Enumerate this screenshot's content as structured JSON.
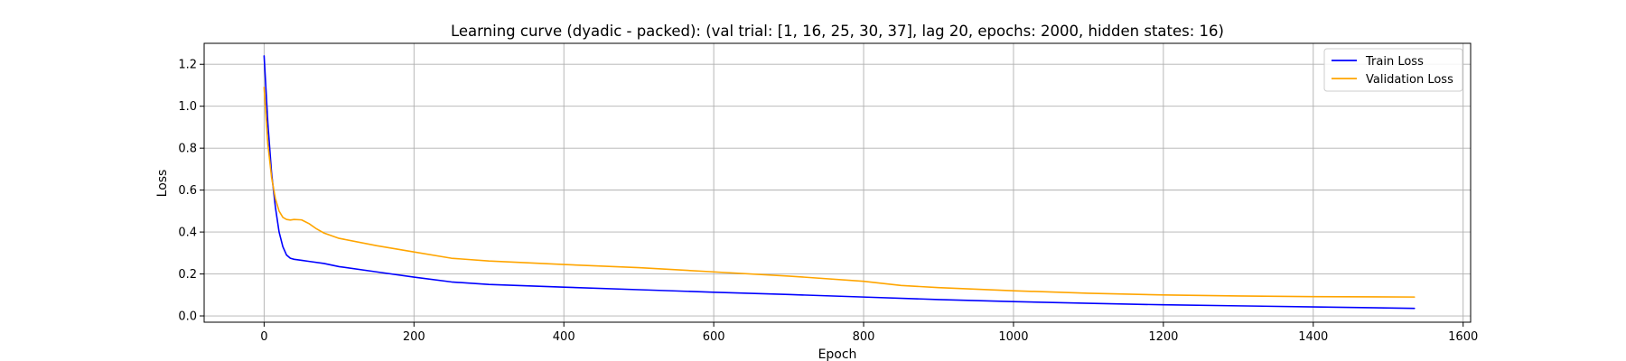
{
  "chart_data": {
    "type": "line",
    "title": "Learning curve (dyadic - packed): (val trial: [1, 16, 25, 30, 37], lag 20, epochs: 2000, hidden states: 16)",
    "xlabel": "Epoch",
    "ylabel": "Loss",
    "xlim": [
      -80,
      1610
    ],
    "ylim": [
      -0.03,
      1.3
    ],
    "xticks": [
      0,
      200,
      400,
      600,
      800,
      1000,
      1200,
      1400,
      1600
    ],
    "yticks": [
      0.0,
      0.2,
      0.4,
      0.6,
      0.8,
      1.0,
      1.2
    ],
    "grid": true,
    "legend_position": "top-right",
    "series": [
      {
        "name": "Train Loss",
        "color": "#0000ff",
        "x": [
          0,
          5,
          10,
          15,
          20,
          25,
          30,
          35,
          40,
          50,
          60,
          80,
          100,
          150,
          200,
          250,
          300,
          400,
          500,
          600,
          700,
          800,
          900,
          1000,
          1100,
          1200,
          1300,
          1400,
          1535
        ],
        "y": [
          1.24,
          0.92,
          0.68,
          0.52,
          0.4,
          0.33,
          0.29,
          0.275,
          0.27,
          0.265,
          0.26,
          0.25,
          0.235,
          0.21,
          0.185,
          0.162,
          0.15,
          0.137,
          0.125,
          0.113,
          0.102,
          0.09,
          0.078,
          0.068,
          0.06,
          0.053,
          0.048,
          0.043,
          0.036
        ]
      },
      {
        "name": "Validation Loss",
        "color": "#ffa500",
        "x": [
          0,
          5,
          10,
          15,
          20,
          25,
          30,
          35,
          40,
          50,
          60,
          70,
          80,
          100,
          150,
          200,
          250,
          300,
          400,
          500,
          600,
          700,
          800,
          850,
          900,
          1000,
          1100,
          1200,
          1300,
          1400,
          1535
        ],
        "y": [
          1.09,
          0.82,
          0.66,
          0.56,
          0.5,
          0.47,
          0.46,
          0.457,
          0.46,
          0.458,
          0.44,
          0.415,
          0.395,
          0.37,
          0.335,
          0.305,
          0.275,
          0.262,
          0.245,
          0.23,
          0.21,
          0.19,
          0.165,
          0.145,
          0.135,
          0.12,
          0.108,
          0.1,
          0.095,
          0.092,
          0.09
        ]
      }
    ]
  }
}
